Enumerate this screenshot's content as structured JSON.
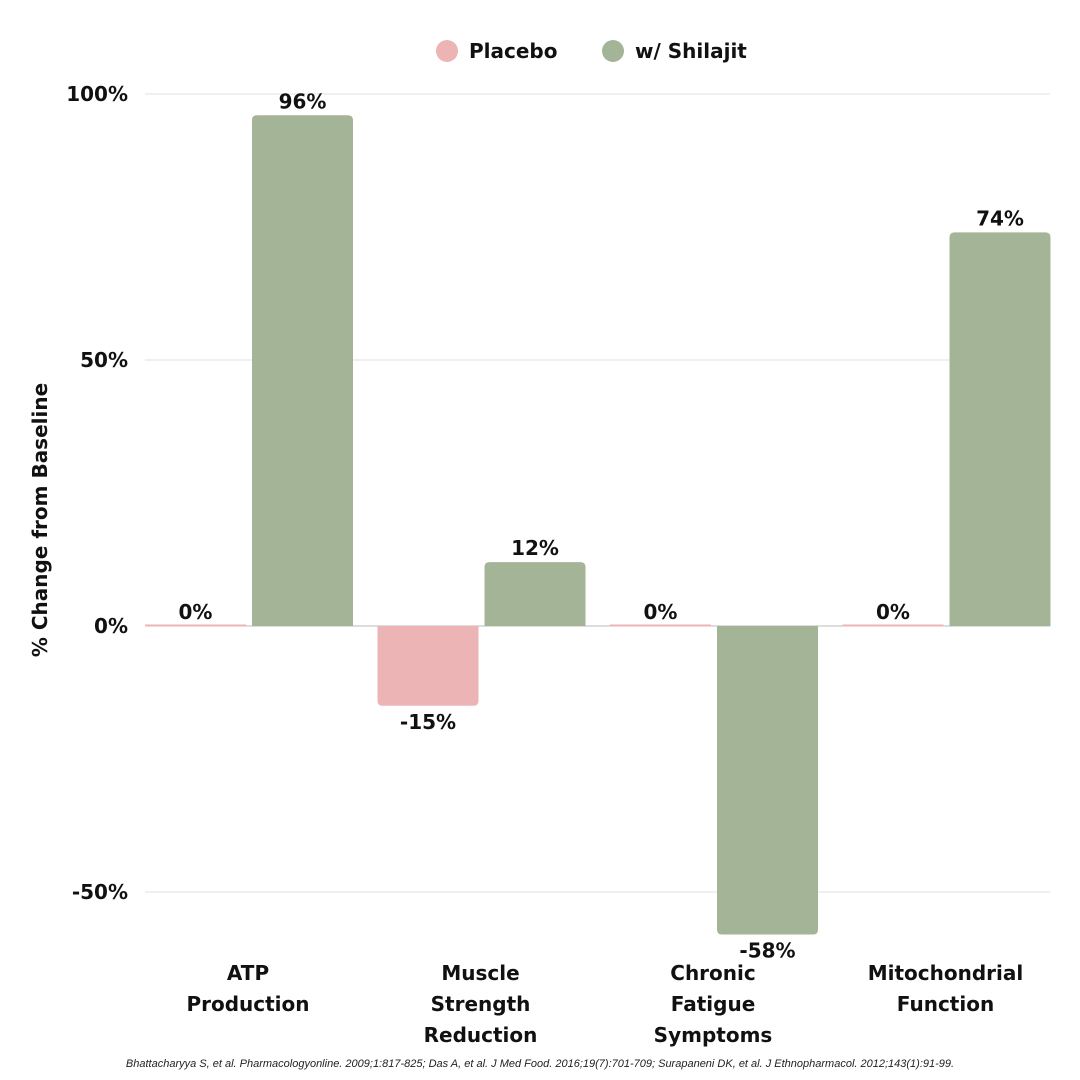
{
  "chart_data": {
    "type": "bar",
    "title": "",
    "xlabel": "",
    "ylabel": "% Change from Baseline",
    "ylim": [
      -60,
      100
    ],
    "yticks": [
      100,
      50,
      0,
      -50
    ],
    "ytick_labels": [
      "100%",
      "50%",
      "0%",
      "-50%"
    ],
    "grid": true,
    "legend_position": "top-center",
    "categories": [
      [
        "ATP",
        "Production"
      ],
      [
        "Muscle",
        "Strength",
        "Reduction"
      ],
      [
        "Chronic",
        "Fatigue",
        "Symptoms"
      ],
      [
        "Mitochondrial",
        "Function"
      ]
    ],
    "series": [
      {
        "name": "Placebo",
        "color": "#ecb4b5",
        "values": [
          0,
          -15,
          0,
          0
        ],
        "labels": [
          "0%",
          "-15%",
          "0%",
          "0%"
        ]
      },
      {
        "name": "w/ Shilajit",
        "color": "#a4b597",
        "values": [
          96,
          12,
          -58,
          74
        ],
        "labels": [
          "96%",
          "12%",
          "-58%",
          "74%"
        ]
      }
    ]
  },
  "footnote": "Bhattacharyya S, et al. Pharmacologyonline. 2009;1:817-825; Das A, et al. J Med Food. 2016;19(7):701-709; Surapaneni DK, et al. J Ethnopharmacol. 2012;143(1):91-99."
}
